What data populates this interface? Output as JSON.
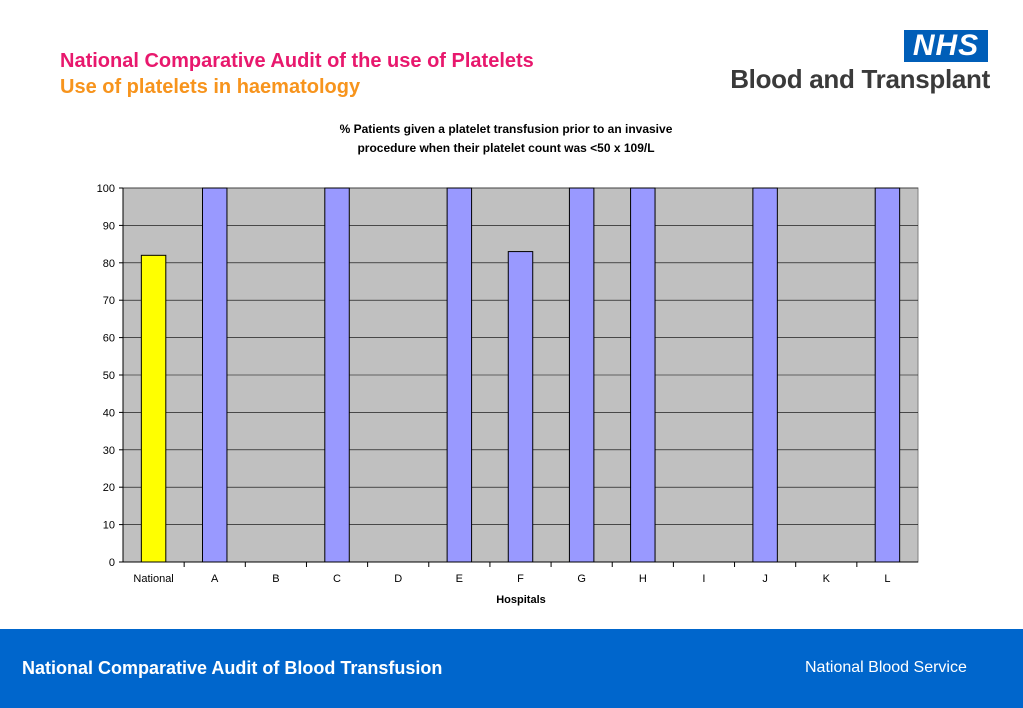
{
  "header": {
    "title_line1": "National Comparative Audit of the use of Platelets",
    "title_line2": "Use of platelets in haematology"
  },
  "logo": {
    "nhs_text": "NHS",
    "org_text": "Blood and Transplant"
  },
  "chart_data": {
    "type": "bar",
    "title": "% Patients given a platelet transfusion prior to an invasive procedure when their platelet count was <50 x 109/L",
    "title_lines": [
      "% Patients given a platelet transfusion prior to an invasive",
      "procedure when their platelet count was <50 x 109/L"
    ],
    "xlabel": "Hospitals",
    "ylabel": "",
    "ylim": [
      0,
      100
    ],
    "yticks": [
      0,
      10,
      20,
      30,
      40,
      50,
      60,
      70,
      80,
      90,
      100
    ],
    "categories": [
      "National",
      "A",
      "B",
      "C",
      "D",
      "E",
      "F",
      "G",
      "H",
      "I",
      "J",
      "K",
      "L"
    ],
    "values": [
      82,
      100,
      0,
      100,
      0,
      100,
      83,
      100,
      100,
      0,
      100,
      0,
      100
    ],
    "grid": true,
    "legend": "none",
    "colors": {
      "national_bar": "#ffff00",
      "hospital_bar": "#9999ff",
      "plot_background": "#c0c0c0",
      "gridline": "#000000"
    }
  },
  "footer": {
    "left_text": "National Comparative Audit of Blood Transfusion",
    "right_text": "National Blood Service",
    "background": "#0066cc"
  }
}
